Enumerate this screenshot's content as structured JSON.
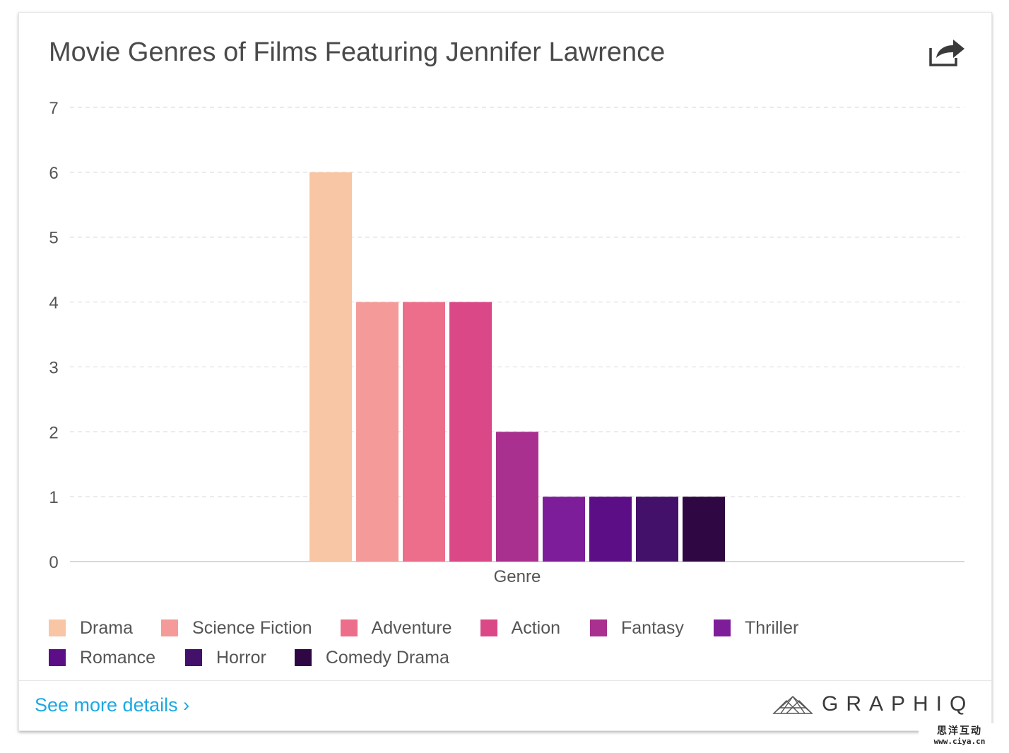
{
  "card": {
    "title": "Movie Genres of Films Featuring Jennifer Lawrence",
    "details_link": "See more details ›",
    "brand_name": "GRAPHIQ",
    "share_icon": "share-icon"
  },
  "watermark": {
    "line1": "思洋互动",
    "line2": "www.ciya.cn"
  },
  "chart_data": {
    "type": "bar",
    "title": "Movie Genres of Films Featuring Jennifer Lawrence",
    "xlabel": "Genre",
    "ylabel": "",
    "ylim": [
      0,
      7
    ],
    "yticks": [
      0,
      1,
      2,
      3,
      4,
      5,
      6,
      7
    ],
    "grid": true,
    "legend_position": "bottom",
    "categories": [
      "Genre"
    ],
    "series": [
      {
        "name": "Drama",
        "values": [
          6
        ],
        "color": "#f8c6a5"
      },
      {
        "name": "Science Fiction",
        "values": [
          4
        ],
        "color": "#f49b9a"
      },
      {
        "name": "Adventure",
        "values": [
          4
        ],
        "color": "#ed6e8a"
      },
      {
        "name": "Action",
        "values": [
          4
        ],
        "color": "#da4887"
      },
      {
        "name": "Fantasy",
        "values": [
          2
        ],
        "color": "#a9308e"
      },
      {
        "name": "Thriller",
        "values": [
          1
        ],
        "color": "#7e1d9a"
      },
      {
        "name": "Romance",
        "values": [
          1
        ],
        "color": "#5c0e87"
      },
      {
        "name": "Horror",
        "values": [
          1
        ],
        "color": "#43106a"
      },
      {
        "name": "Comedy Drama",
        "values": [
          1
        ],
        "color": "#2f0843"
      }
    ]
  }
}
